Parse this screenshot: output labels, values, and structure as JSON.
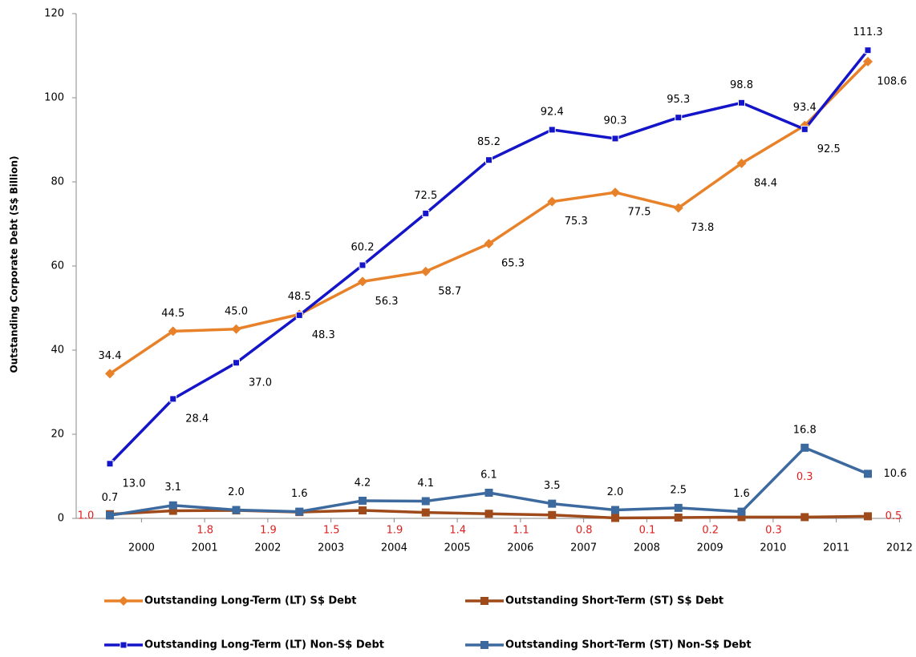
{
  "chart_data": {
    "type": "line",
    "y_label": "Outstanding Corporate Debt (S$ Billion)",
    "categories": [
      "2000",
      "2001",
      "2002",
      "2003",
      "2004",
      "2005",
      "2006",
      "2007",
      "2008",
      "2009",
      "2010",
      "2011",
      "2012"
    ],
    "ylim": [
      0,
      120
    ],
    "yticks": [
      0,
      20,
      40,
      60,
      80,
      100,
      120
    ],
    "series": [
      {
        "name": "Outstanding Long-Term (LT) S$ Debt",
        "color": "#e8822a",
        "marker": "diamond",
        "values": [
          34.4,
          44.5,
          45.0,
          48.5,
          56.3,
          58.7,
          65.3,
          75.3,
          77.5,
          73.8,
          84.4,
          93.4,
          108.6
        ],
        "value_labels": [
          "34.4",
          "44.5",
          "45.0",
          "48.5",
          "56.3",
          "58.7",
          "65.3",
          "75.3",
          "77.5",
          "73.8",
          "84.4",
          "93.4",
          "108.6"
        ]
      },
      {
        "name": "Outstanding Short-Term (ST) S$ Debt",
        "color": "#9e4a1a",
        "marker": "square",
        "values": [
          1.0,
          1.8,
          1.9,
          1.5,
          1.9,
          1.4,
          1.1,
          0.8,
          0.1,
          0.2,
          0.3,
          0.3,
          0.5
        ],
        "value_labels": [
          "1.0",
          "1.8",
          "1.9",
          "1.5",
          "1.9",
          "1.4",
          "1.1",
          "0.8",
          "0.1",
          "0.2",
          "0.3",
          "0.3",
          "0.5"
        ]
      },
      {
        "name": "Outstanding Long-Term (LT) Non-S$ Debt",
        "color": "#1414c8",
        "marker": "smallsquare",
        "values": [
          13.0,
          28.4,
          37.0,
          48.3,
          60.2,
          72.5,
          85.2,
          92.4,
          90.3,
          95.3,
          98.8,
          92.5,
          111.3
        ],
        "value_labels": [
          "13.0",
          "28.4",
          "37.0",
          "48.3",
          "60.2",
          "72.5",
          "85.2",
          "92.4",
          "90.3",
          "95.3",
          "98.8",
          "92.5",
          "111.3"
        ]
      },
      {
        "name": "Outstanding Short-Term (ST) Non-S$ Debt",
        "color": "#3d6a9e",
        "marker": "square",
        "values": [
          0.7,
          3.1,
          2.0,
          1.6,
          4.2,
          4.1,
          6.1,
          3.5,
          2.0,
          2.5,
          1.6,
          16.8,
          10.6
        ],
        "value_labels": [
          "0.7",
          "3.1",
          "2.0",
          "1.6",
          "4.2",
          "4.1",
          "6.1",
          "3.5",
          "2.0",
          "2.5",
          "1.6",
          "16.8",
          "10.6"
        ]
      }
    ]
  }
}
